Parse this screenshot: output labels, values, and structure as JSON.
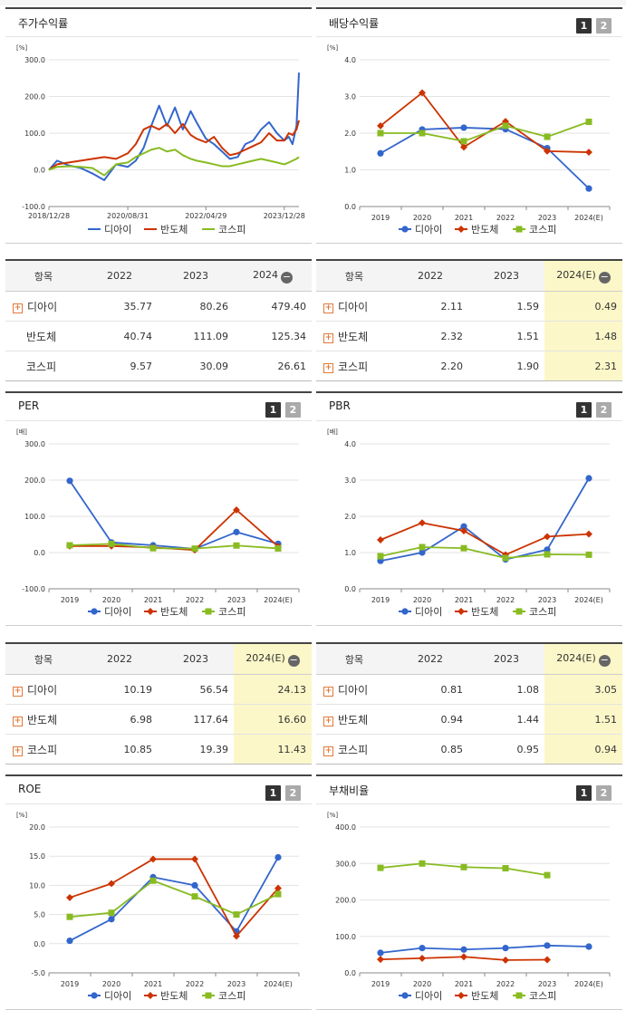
{
  "colors": {
    "diai": "#3366cc",
    "bando": "#cc3300",
    "kospi": "#88bb22"
  },
  "legend": [
    "디아이",
    "반도체",
    "코스피"
  ],
  "panels": [
    {
      "title": "주가수익률",
      "has_buttons": false,
      "chart_data": {
        "type": "line",
        "unit": "[%]",
        "yticks": [
          "300.0",
          "200.0",
          "100.0",
          "0.0",
          "-100.0"
        ],
        "ylim": [
          -100,
          300
        ],
        "xticks": [
          "2018/12/28",
          "2020/08/31",
          "2022/04/29",
          "2023/12/28"
        ],
        "x_dates": [
          "2018-12-28",
          "2019-03-01",
          "2019-06-01",
          "2019-09-01",
          "2019-12-01",
          "2020-03-01",
          "2020-06-01",
          "2020-08-31",
          "2020-11-01",
          "2021-01-01",
          "2021-03-01",
          "2021-05-01",
          "2021-07-01",
          "2021-09-01",
          "2021-11-01",
          "2022-01-01",
          "2022-02-15",
          "2022-04-29",
          "2022-07-01",
          "2022-09-01",
          "2022-11-01",
          "2023-01-01",
          "2023-03-01",
          "2023-05-01",
          "2023-07-01",
          "2023-09-01",
          "2023-11-01",
          "2023-12-28",
          "2024-02-01",
          "2024-03-01",
          "2024-04-01",
          "2024-04-20"
        ],
        "series": [
          {
            "name": "디아이",
            "values": [
              0,
              25,
              12,
              5,
              -10,
              -28,
              15,
              8,
              25,
              60,
              120,
              175,
              120,
              170,
              110,
              160,
              130,
              85,
              70,
              50,
              30,
              35,
              70,
              80,
              110,
              130,
              100,
              80,
              90,
              70,
              120,
              265
            ]
          },
          {
            "name": "반도체",
            "values": [
              0,
              15,
              20,
              25,
              30,
              35,
              30,
              45,
              70,
              110,
              120,
              110,
              125,
              100,
              125,
              95,
              85,
              75,
              90,
              60,
              40,
              45,
              55,
              65,
              75,
              100,
              80,
              80,
              100,
              95,
              110,
              135
            ]
          },
          {
            "name": "코스피",
            "values": [
              0,
              8,
              10,
              8,
              5,
              -15,
              15,
              20,
              35,
              45,
              55,
              60,
              50,
              55,
              40,
              30,
              25,
              20,
              15,
              10,
              10,
              15,
              20,
              25,
              30,
              25,
              20,
              15,
              20,
              25,
              30,
              35
            ]
          }
        ]
      }
    },
    {
      "title": "배당수익률",
      "has_buttons": true,
      "buttons": [
        "1",
        "2"
      ],
      "chart_data": {
        "type": "line",
        "unit": "[%]",
        "yticks": [
          "4.0",
          "3.0",
          "2.0",
          "1.0",
          "0.0"
        ],
        "ylim": [
          0,
          4
        ],
        "categories": [
          "2019",
          "2020",
          "2021",
          "2022",
          "2023",
          "2024(E)"
        ],
        "series": [
          {
            "name": "디아이",
            "values": [
              1.45,
              2.1,
              2.15,
              2.11,
              1.59,
              0.49
            ]
          },
          {
            "name": "반도체",
            "values": [
              2.2,
              3.1,
              1.62,
              2.32,
              1.51,
              1.48
            ]
          },
          {
            "name": "코스피",
            "values": [
              2.0,
              2.0,
              1.78,
              2.2,
              1.9,
              2.31
            ]
          }
        ]
      }
    },
    {
      "title": "PER",
      "has_buttons": true,
      "buttons": [
        "1",
        "2"
      ],
      "chart_data": {
        "type": "line",
        "unit": "[배]",
        "yticks": [
          "300.0",
          "200.0",
          "100.0",
          "0.0",
          "-100.0"
        ],
        "ylim": [
          -100,
          300
        ],
        "categories": [
          "2019",
          "2020",
          "2021",
          "2022",
          "2023",
          "2024(E)"
        ],
        "series": [
          {
            "name": "디아이",
            "values": [
              198,
              28,
              20,
              10.19,
              56.54,
              24.13
            ]
          },
          {
            "name": "반도체",
            "values": [
              18,
              18,
              14,
              6.98,
              117.64,
              16.6
            ]
          },
          {
            "name": "코스피",
            "values": [
              20,
              24,
              12,
              10.85,
              19.39,
              11.43
            ]
          }
        ]
      }
    },
    {
      "title": "PBR",
      "has_buttons": true,
      "buttons": [
        "1",
        "2"
      ],
      "chart_data": {
        "type": "line",
        "unit": "[배]",
        "yticks": [
          "4.0",
          "3.0",
          "2.0",
          "1.0",
          "0.0"
        ],
        "ylim": [
          0,
          4
        ],
        "categories": [
          "2019",
          "2020",
          "2021",
          "2022",
          "2023",
          "2024(E)"
        ],
        "series": [
          {
            "name": "디아이",
            "values": [
              0.77,
              1.0,
              1.72,
              0.81,
              1.08,
              3.05
            ]
          },
          {
            "name": "반도체",
            "values": [
              1.35,
              1.82,
              1.6,
              0.94,
              1.44,
              1.51
            ]
          },
          {
            "name": "코스피",
            "values": [
              0.9,
              1.15,
              1.12,
              0.85,
              0.95,
              0.94
            ]
          }
        ]
      }
    },
    {
      "title": "ROE",
      "has_buttons": true,
      "buttons": [
        "1",
        "2"
      ],
      "chart_data": {
        "type": "line",
        "unit": "[%]",
        "yticks": [
          "20.0",
          "15.0",
          "10.0",
          "5.0",
          "0.0",
          "-5.0"
        ],
        "ylim": [
          -5,
          20
        ],
        "categories": [
          "2019",
          "2020",
          "2021",
          "2022",
          "2023",
          "2024(E)"
        ],
        "series": [
          {
            "name": "디아이",
            "values": [
              0.5,
              4.2,
              11.4,
              10.0,
              2.1,
              14.8
            ]
          },
          {
            "name": "반도체",
            "values": [
              7.9,
              10.3,
              14.5,
              14.5,
              1.3,
              9.5
            ]
          },
          {
            "name": "코스피",
            "values": [
              4.6,
              5.3,
              10.8,
              8.1,
              5.0,
              8.5
            ]
          }
        ]
      }
    },
    {
      "title": "부채비율",
      "has_buttons": true,
      "buttons": [
        "1",
        "2"
      ],
      "chart_data": {
        "type": "line",
        "unit": "[%]",
        "yticks": [
          "400.0",
          "300.0",
          "200.0",
          "100.0",
          "0.0"
        ],
        "ylim": [
          0,
          400
        ],
        "categories": [
          "2019",
          "2020",
          "2021",
          "2022",
          "2023",
          "2024(E)"
        ],
        "series": [
          {
            "name": "디아이",
            "values": [
              55,
              68,
              64,
              68,
              75,
              72
            ]
          },
          {
            "name": "반도체",
            "values": [
              37,
              40,
              44,
              35,
              36,
              null
            ]
          },
          {
            "name": "코스피",
            "values": [
              288,
              300,
              290,
              287,
              268,
              null
            ]
          }
        ]
      }
    }
  ],
  "tables": [
    {
      "header": [
        "항목",
        "2022",
        "2023",
        "2024"
      ],
      "hl": false,
      "rows": [
        {
          "name": "디아이",
          "plus": true,
          "values": [
            "35.77",
            "80.26",
            "479.40"
          ]
        },
        {
          "name": "반도체",
          "plus": false,
          "values": [
            "40.74",
            "111.09",
            "125.34"
          ]
        },
        {
          "name": "코스피",
          "plus": false,
          "values": [
            "9.57",
            "30.09",
            "26.61"
          ]
        }
      ]
    },
    {
      "header": [
        "항목",
        "2022",
        "2023",
        "2024(E)"
      ],
      "hl": true,
      "rows": [
        {
          "name": "디아이",
          "plus": true,
          "values": [
            "2.11",
            "1.59",
            "0.49"
          ]
        },
        {
          "name": "반도체",
          "plus": true,
          "values": [
            "2.32",
            "1.51",
            "1.48"
          ]
        },
        {
          "name": "코스피",
          "plus": true,
          "values": [
            "2.20",
            "1.90",
            "2.31"
          ]
        }
      ]
    },
    {
      "header": [
        "항목",
        "2022",
        "2023",
        "2024(E)"
      ],
      "hl": true,
      "rows": [
        {
          "name": "디아이",
          "plus": true,
          "values": [
            "10.19",
            "56.54",
            "24.13"
          ]
        },
        {
          "name": "반도체",
          "plus": true,
          "values": [
            "6.98",
            "117.64",
            "16.60"
          ]
        },
        {
          "name": "코스피",
          "plus": true,
          "values": [
            "10.85",
            "19.39",
            "11.43"
          ]
        }
      ]
    },
    {
      "header": [
        "항목",
        "2022",
        "2023",
        "2024(E)"
      ],
      "hl": true,
      "rows": [
        {
          "name": "디아이",
          "plus": true,
          "values": [
            "0.81",
            "1.08",
            "3.05"
          ]
        },
        {
          "name": "반도체",
          "plus": true,
          "values": [
            "0.94",
            "1.44",
            "1.51"
          ]
        },
        {
          "name": "코스피",
          "plus": true,
          "values": [
            "0.85",
            "0.95",
            "0.94"
          ]
        }
      ]
    }
  ]
}
